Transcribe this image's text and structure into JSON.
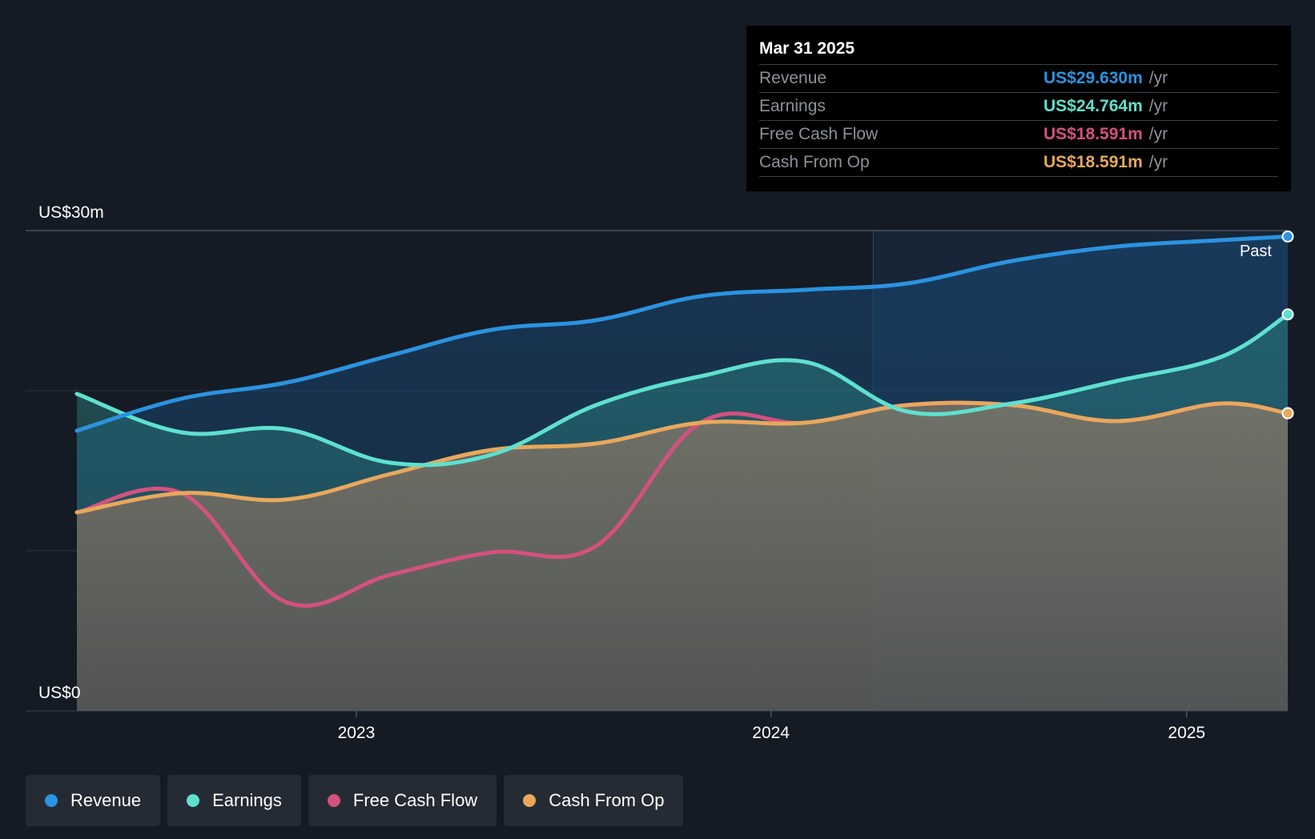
{
  "chart_data": {
    "type": "area",
    "y_unit_label_top": "US$30m",
    "y_unit_label_bottom": "US$0",
    "ylim": [
      0,
      30
    ],
    "xlim": [
      "2022-04-30",
      "2025-03-31"
    ],
    "x_tick_labels": [
      {
        "label": "2023",
        "date": "2023-01-01"
      },
      {
        "label": "2024",
        "date": "2024-01-01"
      },
      {
        "label": "2025",
        "date": "2025-01-01"
      }
    ],
    "past_label": "Past",
    "past_divider_date": "2024-03-31",
    "grid": true,
    "grid_values": [
      0,
      10,
      20,
      30
    ],
    "series": [
      {
        "name": "Revenue",
        "color": "#2b93e0",
        "points": [
          [
            "2022-04-30",
            17.5
          ],
          [
            "2022-07-31",
            19.5
          ],
          [
            "2022-10-31",
            20.5
          ],
          [
            "2023-01-31",
            22.2
          ],
          [
            "2023-04-30",
            23.8
          ],
          [
            "2023-07-31",
            24.4
          ],
          [
            "2023-10-31",
            25.9
          ],
          [
            "2024-01-31",
            26.3
          ],
          [
            "2024-04-30",
            26.7
          ],
          [
            "2024-07-31",
            28.1
          ],
          [
            "2024-10-31",
            29.0
          ],
          [
            "2025-01-31",
            29.4
          ],
          [
            "2025-03-31",
            29.63
          ]
        ]
      },
      {
        "name": "Earnings",
        "color": "#5fe0cf",
        "points": [
          [
            "2022-04-30",
            19.8
          ],
          [
            "2022-07-31",
            17.4
          ],
          [
            "2022-10-31",
            17.6
          ],
          [
            "2023-01-31",
            15.5
          ],
          [
            "2023-04-30",
            16.0
          ],
          [
            "2023-07-31",
            19.1
          ],
          [
            "2023-10-31",
            20.9
          ],
          [
            "2024-01-31",
            21.8
          ],
          [
            "2024-04-30",
            18.7
          ],
          [
            "2024-07-31",
            19.2
          ],
          [
            "2024-10-31",
            20.6
          ],
          [
            "2025-01-31",
            22.1
          ],
          [
            "2025-03-31",
            24.764
          ]
        ]
      },
      {
        "name": "Free Cash Flow",
        "color": "#d4517f",
        "points": [
          [
            "2022-04-30",
            12.4
          ],
          [
            "2022-07-31",
            13.6
          ],
          [
            "2022-10-31",
            6.8
          ],
          [
            "2023-01-31",
            8.5
          ],
          [
            "2023-04-30",
            9.9
          ],
          [
            "2023-07-31",
            10.3
          ],
          [
            "2023-10-31",
            18.0
          ],
          [
            "2024-01-31",
            18.0
          ],
          [
            "2024-04-30",
            19.1
          ],
          [
            "2024-07-31",
            19.1
          ],
          [
            "2024-10-31",
            18.1
          ],
          [
            "2025-01-31",
            19.2
          ],
          [
            "2025-03-31",
            18.591
          ]
        ]
      },
      {
        "name": "Cash From Op",
        "color": "#e8a85c",
        "points": [
          [
            "2022-04-30",
            12.4
          ],
          [
            "2022-07-31",
            13.6
          ],
          [
            "2022-10-31",
            13.2
          ],
          [
            "2023-01-31",
            14.8
          ],
          [
            "2023-04-30",
            16.3
          ],
          [
            "2023-07-31",
            16.7
          ],
          [
            "2023-10-31",
            18.0
          ],
          [
            "2024-01-31",
            18.0
          ],
          [
            "2024-04-30",
            19.1
          ],
          [
            "2024-07-31",
            19.1
          ],
          [
            "2024-10-31",
            18.1
          ],
          [
            "2025-01-31",
            19.2
          ],
          [
            "2025-03-31",
            18.591
          ]
        ]
      }
    ]
  },
  "tooltip": {
    "date": "Mar 31 2025",
    "rows": [
      {
        "label": "Revenue",
        "value": "US$29.630m",
        "unit": "/yr",
        "color": "#2b93e0"
      },
      {
        "label": "Earnings",
        "value": "US$24.764m",
        "unit": "/yr",
        "color": "#5fe0cf"
      },
      {
        "label": "Free Cash Flow",
        "value": "US$18.591m",
        "unit": "/yr",
        "color": "#d4517f"
      },
      {
        "label": "Cash From Op",
        "value": "US$18.591m",
        "unit": "/yr",
        "color": "#e8a85c"
      }
    ]
  },
  "legend": [
    {
      "label": "Revenue",
      "color": "#2b93e0"
    },
    {
      "label": "Earnings",
      "color": "#5fe0cf"
    },
    {
      "label": "Free Cash Flow",
      "color": "#d4517f"
    },
    {
      "label": "Cash From Op",
      "color": "#e8a85c"
    }
  ]
}
